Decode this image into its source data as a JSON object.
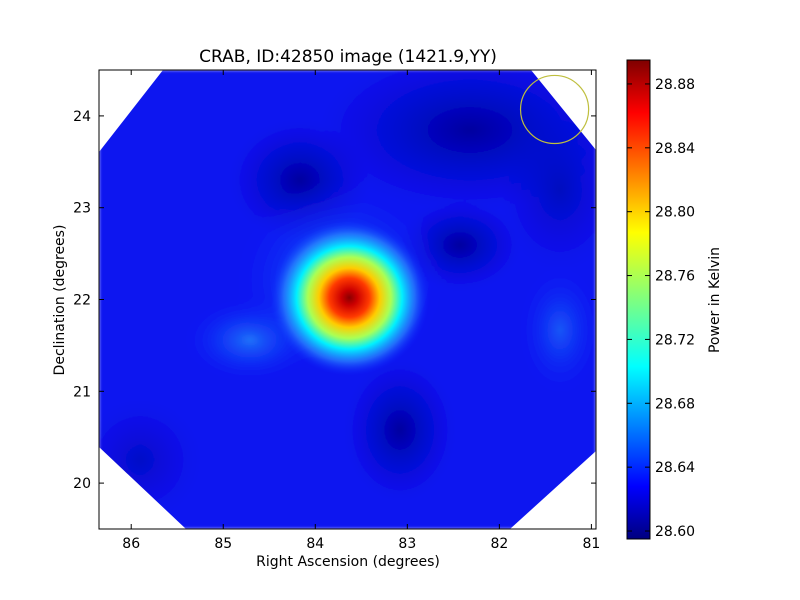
{
  "chart_data": {
    "type": "heatmap",
    "title": "CRAB, ID:42850 image (1421.9,YY)",
    "xlabel": "Right Ascension (degrees)",
    "ylabel": "Declination (degrees)",
    "xlim": [
      86.35,
      80.95
    ],
    "ylim": [
      19.5,
      24.5
    ],
    "x_ticks": [
      86,
      85,
      84,
      83,
      82,
      81
    ],
    "y_ticks": [
      20,
      21,
      22,
      23,
      24
    ],
    "colorbar": {
      "label": "Power in Kelvin",
      "range": [
        28.595,
        28.895
      ],
      "ticks": [
        "28.60",
        "28.64",
        "28.68",
        "28.72",
        "28.76",
        "28.80",
        "28.84",
        "28.88"
      ],
      "colormap": "jet"
    },
    "sources": [
      {
        "ra": 83.63,
        "dec": 22.02,
        "peak": 28.89
      }
    ],
    "beam_circle": {
      "ra": 81.4,
      "dec": 24.07,
      "radius_deg": 0.37,
      "color": "#bfbf3f"
    }
  }
}
